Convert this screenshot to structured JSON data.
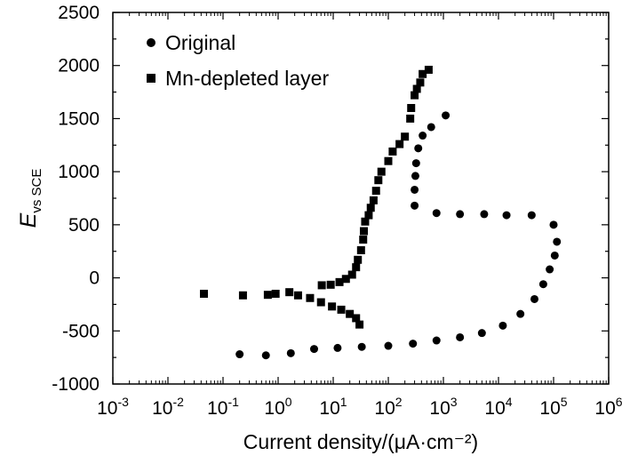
{
  "chart_data": {
    "type": "scatter",
    "title": "",
    "xlabel": "Current density/(μA·cm⁻²)",
    "ylabel": {
      "main": "E",
      "subscript": "vs SCE"
    },
    "xscale": "log",
    "xlim": [
      0.001,
      1000000
    ],
    "ylim": [
      -1000,
      2500
    ],
    "x_tick_labels": [
      {
        "base": "10",
        "exp": "-3"
      },
      {
        "base": "10",
        "exp": "-2"
      },
      {
        "base": "10",
        "exp": "-1"
      },
      {
        "base": "10",
        "exp": "0"
      },
      {
        "base": "10",
        "exp": "1"
      },
      {
        "base": "10",
        "exp": "2"
      },
      {
        "base": "10",
        "exp": "3"
      },
      {
        "base": "10",
        "exp": "4"
      },
      {
        "base": "10",
        "exp": "5"
      },
      {
        "base": "10",
        "exp": "6"
      }
    ],
    "y_tick_labels": [
      "-1000",
      "-500",
      "0",
      "500",
      "1000",
      "1500",
      "2000",
      "2500"
    ],
    "legend_position": "top-left",
    "grid": false,
    "series": [
      {
        "name": "Original",
        "marker": "circle",
        "points": [
          [
            0.2,
            -720
          ],
          [
            0.6,
            -730
          ],
          [
            1.7,
            -710
          ],
          [
            4.5,
            -670
          ],
          [
            12,
            -660
          ],
          [
            33,
            -650
          ],
          [
            100,
            -640
          ],
          [
            280,
            -620
          ],
          [
            750,
            -590
          ],
          [
            2000,
            -560
          ],
          [
            5000,
            -520
          ],
          [
            12000,
            -450
          ],
          [
            25000,
            -340
          ],
          [
            45000,
            -200
          ],
          [
            65000,
            -60
          ],
          [
            85000,
            80
          ],
          [
            105000,
            210
          ],
          [
            115000,
            340
          ],
          [
            100000,
            500
          ],
          [
            40000,
            590
          ],
          [
            14000,
            590
          ],
          [
            5500,
            600
          ],
          [
            2000,
            600
          ],
          [
            750,
            610
          ],
          [
            300,
            680
          ],
          [
            300,
            830
          ],
          [
            310,
            960
          ],
          [
            320,
            1080
          ],
          [
            350,
            1220
          ],
          [
            420,
            1340
          ],
          [
            600,
            1420
          ],
          [
            1100,
            1530
          ]
        ]
      },
      {
        "name": "Mn-depleted layer",
        "marker": "square",
        "points": [
          [
            0.045,
            -150
          ],
          [
            0.23,
            -165
          ],
          [
            0.65,
            -160
          ],
          [
            1.6,
            -135
          ],
          [
            2.3,
            -165
          ],
          [
            3.8,
            -190
          ],
          [
            6,
            -230
          ],
          [
            9.5,
            -270
          ],
          [
            14,
            -300
          ],
          [
            20,
            -340
          ],
          [
            26,
            -380
          ],
          [
            30,
            -440
          ],
          [
            0.9,
            -150
          ],
          [
            6.2,
            -70
          ],
          [
            9,
            -65
          ],
          [
            13,
            -40
          ],
          [
            17,
            -10
          ],
          [
            22,
            30
          ],
          [
            26,
            100
          ],
          [
            28,
            170
          ],
          [
            32,
            260
          ],
          [
            35,
            360
          ],
          [
            36,
            440
          ],
          [
            38,
            530
          ],
          [
            44,
            590
          ],
          [
            48,
            660
          ],
          [
            54,
            730
          ],
          [
            60,
            820
          ],
          [
            66,
            920
          ],
          [
            75,
            1000
          ],
          [
            100,
            1100
          ],
          [
            120,
            1190
          ],
          [
            160,
            1260
          ],
          [
            200,
            1330
          ],
          [
            250,
            1500
          ],
          [
            260,
            1600
          ],
          [
            300,
            1720
          ],
          [
            330,
            1780
          ],
          [
            380,
            1840
          ],
          [
            420,
            1920
          ],
          [
            540,
            1960
          ]
        ]
      }
    ]
  }
}
